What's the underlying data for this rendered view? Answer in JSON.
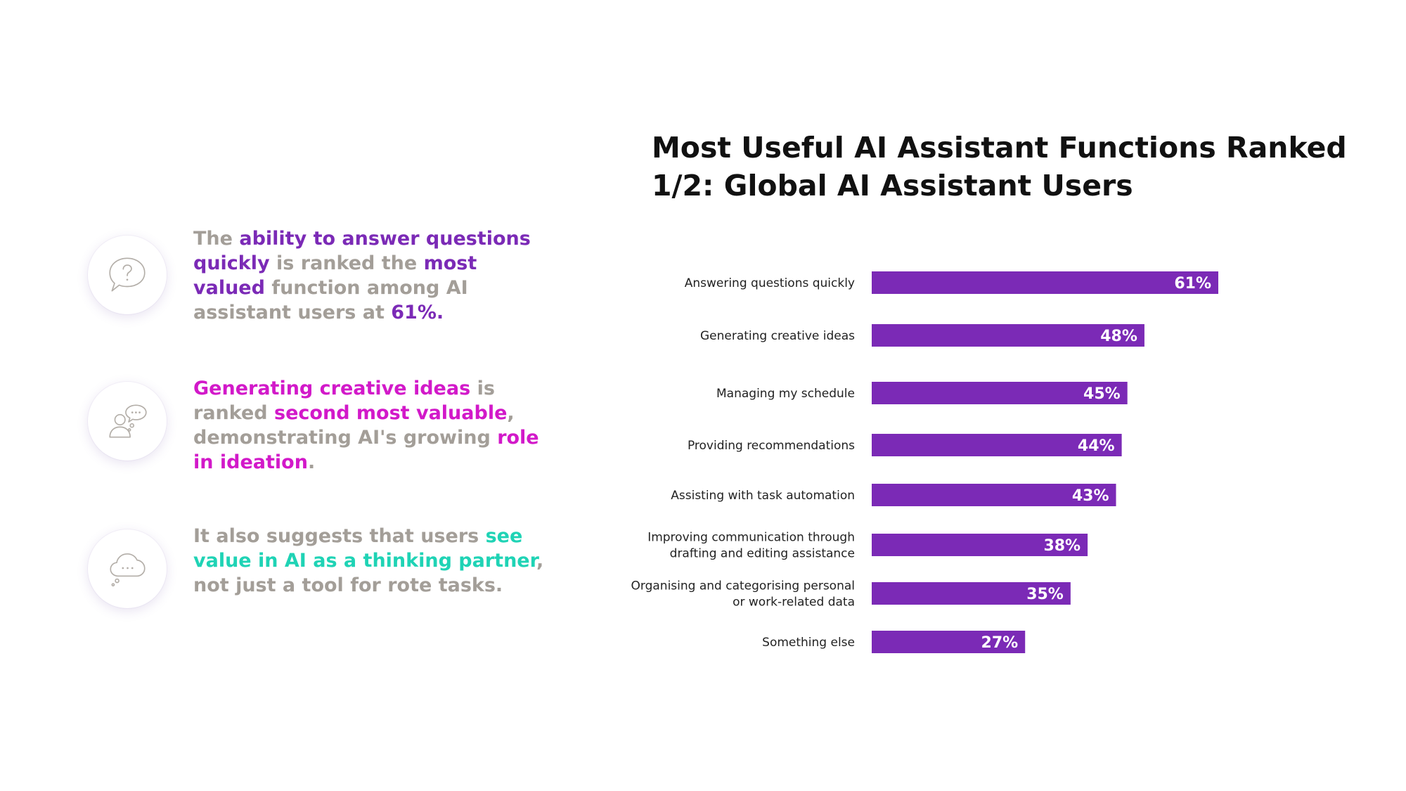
{
  "insights": [
    {
      "icon": "question-speech-bubble-icon",
      "parts": [
        {
          "text": "The ",
          "color": "gray"
        },
        {
          "text": "ability to answer questions quickly",
          "color": "purple"
        },
        {
          "text": " is ranked the ",
          "color": "gray"
        },
        {
          "text": "most valued",
          "color": "purple"
        },
        {
          "text": " function among AI assistant users at ",
          "color": "gray"
        },
        {
          "text": "61%.",
          "color": "purple"
        }
      ]
    },
    {
      "icon": "person-thought-bubble-icon",
      "parts": [
        {
          "text": "Generating creative ideas",
          "color": "magenta"
        },
        {
          "text": " is ranked ",
          "color": "gray"
        },
        {
          "text": "second most valuable",
          "color": "magenta"
        },
        {
          "text": ", demonstrating AI's growing ",
          "color": "gray"
        },
        {
          "text": "role in ideation",
          "color": "magenta"
        },
        {
          "text": ".",
          "color": "gray"
        }
      ]
    },
    {
      "icon": "thought-cloud-icon",
      "parts": [
        {
          "text": "It also suggests that users ",
          "color": "gray"
        },
        {
          "text": "see value in AI as a thinking partner",
          "color": "teal"
        },
        {
          "text": ", not just a tool for rote tasks.",
          "color": "gray"
        }
      ]
    }
  ],
  "colors": {
    "gray": "#a39e98",
    "purple": "#7b2ab6",
    "magenta": "#d219c9",
    "teal": "#1fd3b5",
    "bar": "#7b2ab6"
  },
  "chart_data": {
    "type": "bar",
    "orientation": "horizontal",
    "title": "Most Useful AI Assistant Functions Ranked 1/2: Global AI Assistant Users",
    "categories": [
      "Answering questions quickly",
      "Generating creative ideas",
      "Managing my schedule",
      "Providing recommendations",
      "Assisting with task automation",
      "Improving communication through drafting and editing assistance",
      "Organising and categorising personal or work-related data",
      "Something else"
    ],
    "category_lines": [
      [
        "Answering questions quickly"
      ],
      [
        "Generating creative ideas"
      ],
      [
        "Managing my schedule"
      ],
      [
        "Providing recommendations"
      ],
      [
        "Assisting with task automation"
      ],
      [
        "Improving communication through",
        "drafting and editing assistance"
      ],
      [
        "Organising and categorising personal",
        "or work-related data"
      ],
      [
        "Something else"
      ]
    ],
    "values": [
      61,
      48,
      45,
      44,
      43,
      38,
      35,
      27
    ],
    "value_labels": [
      "61%",
      "48%",
      "45%",
      "44%",
      "43%",
      "38%",
      "35%",
      "27%"
    ],
    "unit": "%",
    "xlim": [
      0,
      100
    ],
    "grid": false,
    "legend": "none"
  }
}
